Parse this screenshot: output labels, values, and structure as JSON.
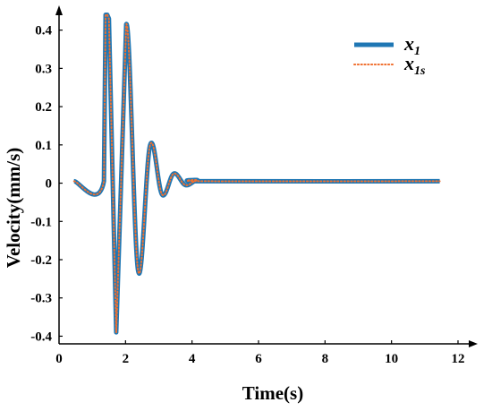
{
  "chart_data": {
    "type": "line",
    "title": "",
    "xlabel": "Time(s)",
    "ylabel": "Velocity(mm/s)",
    "xlim": [
      0,
      12
    ],
    "ylim": [
      -0.42,
      0.46
    ],
    "xticks": [
      0,
      2,
      4,
      6,
      8,
      10,
      12
    ],
    "yticks": [
      -0.4,
      -0.3,
      -0.2,
      -0.1,
      0,
      0.1,
      0.2,
      0.3,
      0.4
    ],
    "ytick_labels": [
      "-0.4",
      "-0.3",
      "-0.2",
      "-0.1",
      "0",
      "0.1",
      "0.2",
      "0.3",
      "0.4"
    ],
    "grid": false,
    "legend_position": "top-right",
    "series": [
      {
        "name": "x1",
        "label_main": "x",
        "label_sub": "1",
        "color": "#1f77b4",
        "style": "solid",
        "x": [
          0.45,
          1.35,
          1.4,
          1.45,
          1.5,
          1.72,
          2.02,
          2.38,
          2.74,
          3.1,
          3.45,
          3.8,
          4.15,
          4.5,
          11.45
        ],
        "y": [
          0.005,
          0.005,
          0.44,
          0.44,
          0.43,
          -0.39,
          0.415,
          -0.23,
          0.1,
          -0.03,
          0.025,
          -0.005,
          0.008,
          0.005,
          0.005
        ]
      },
      {
        "name": "x1s",
        "label_main": "x",
        "label_sub": "1s",
        "color": "#f07030",
        "style": "dotted",
        "x": [
          0.45,
          1.35,
          1.4,
          1.45,
          1.5,
          1.72,
          2.02,
          2.38,
          2.74,
          3.1,
          3.45,
          3.8,
          4.15,
          4.5,
          11.45
        ],
        "y": [
          0.005,
          0.005,
          0.44,
          0.44,
          0.43,
          -0.39,
          0.415,
          -0.23,
          0.1,
          -0.03,
          0.025,
          -0.005,
          0.008,
          0.005,
          0.005
        ]
      }
    ]
  }
}
